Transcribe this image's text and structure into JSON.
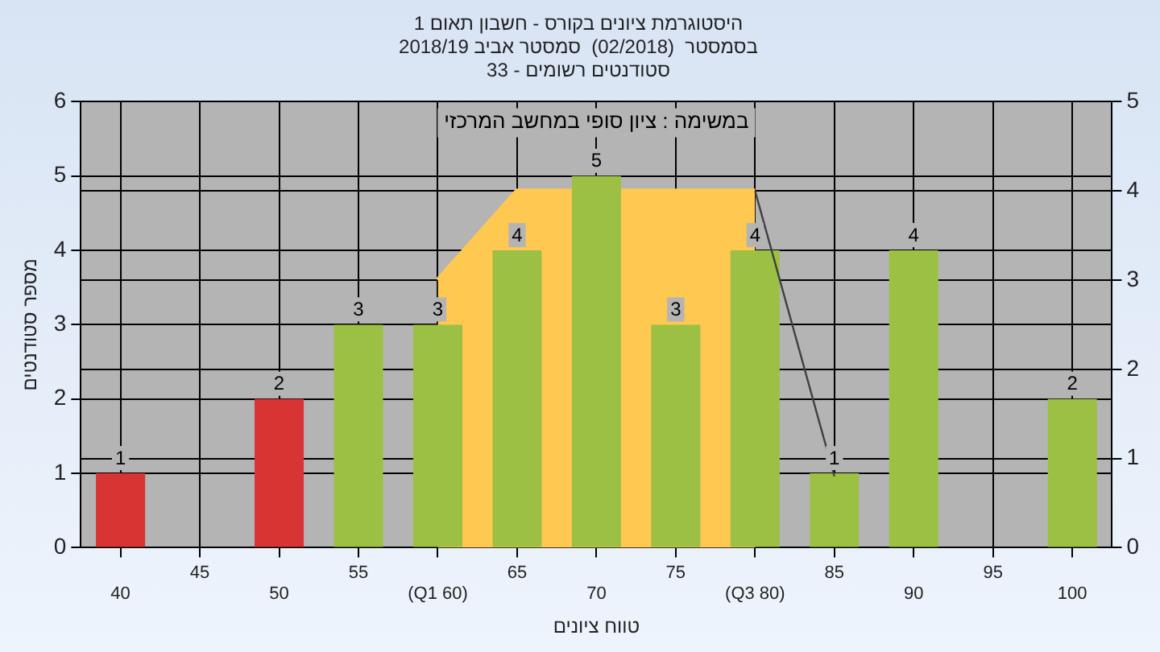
{
  "chart_data": {
    "type": "bar",
    "title": "היסטוגרמת ציונים בקורס - חשבון תאום 1",
    "subtitle": "בסמסטר  (02/2018)  סמסטר אביב 2018/19\nסטודנטים רשומים - 33",
    "xlabel": "טווח ציונים",
    "ylabel": "מספר סטודנטים",
    "annotations": [
      "במשימה : ציון סופי במחשב המרכזי"
    ],
    "categories": [
      "40",
      "45",
      "50",
      "55",
      "(Q1 60)",
      "65",
      "70",
      "75",
      "(Q3 80)",
      "85",
      "90",
      "95",
      "100"
    ],
    "series": [
      {
        "type": "bar",
        "colors": [
          "#d83434",
          "#d83434",
          "#d83434",
          "#9cc044",
          "#9cc044",
          "#9cc044",
          "#9cc044",
          "#9cc044",
          "#9cc044",
          "#9cc044",
          "#9cc044",
          "#9cc044",
          "#9cc044"
        ],
        "values": [
          1,
          0,
          2,
          3,
          3,
          4,
          5,
          3,
          4,
          1,
          4,
          0,
          2
        ],
        "value_labels": [
          "1",
          null,
          "2",
          "3",
          "3",
          "4",
          "5",
          "3",
          "4",
          "1",
          "4",
          null,
          "2"
        ]
      },
      {
        "type": "area",
        "axis": "y2",
        "color": "#ffc850",
        "values": [
          null,
          null,
          null,
          null,
          3,
          4,
          4,
          4,
          4,
          null,
          null,
          null,
          null
        ]
      },
      {
        "type": "line",
        "axis": "y2",
        "color": "#404040",
        "values": [
          null,
          null,
          null,
          null,
          null,
          null,
          null,
          null,
          4,
          0.8,
          null,
          null,
          null
        ]
      }
    ],
    "ylim": [
      0,
      6
    ],
    "yticks": [
      0,
      1,
      2,
      3,
      4,
      5,
      6
    ],
    "y2lim": [
      0,
      5
    ],
    "y2ticks": [
      0,
      1,
      2,
      3,
      4,
      5
    ],
    "grid": true,
    "legend": false
  }
}
